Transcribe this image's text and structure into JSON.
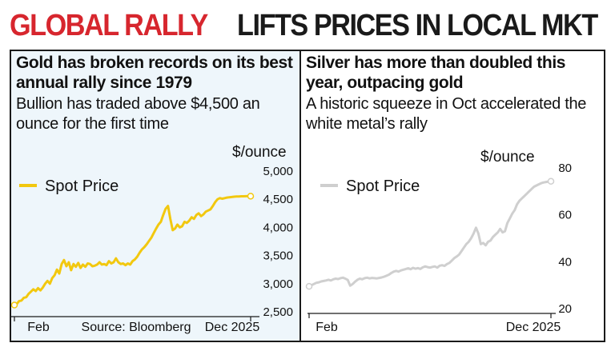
{
  "headline": {
    "part1": "GLOBAL RALLY",
    "part2": "LIFTS PRICES IN LOCAL MKT"
  },
  "colors": {
    "headline_red": "#d7262e",
    "gold": "#f2c80f",
    "silver": "#cfcfcf",
    "text": "#111111"
  },
  "gold_panel": {
    "title": "Gold has broken records on its best annual rally since 1979",
    "subtitle": "Bullion has traded above $4,500 an ounce for the first time",
    "unit": "$/ounce",
    "source": "Source: Bloomberg"
  },
  "silver_panel": {
    "title": "Silver has more than doubled this year, outpacing gold",
    "subtitle": "A historic squeeze in Oct accelerated the white metal’s rally",
    "unit": "$/ounce"
  },
  "chart_data": [
    {
      "type": "line",
      "series": [
        {
          "name": "Spot Price",
          "color": "#f2c80f",
          "x": [
            0,
            3,
            6,
            9,
            12,
            15,
            18,
            21,
            24,
            27,
            30,
            33,
            36,
            39,
            42,
            45,
            48,
            51,
            54,
            57,
            60,
            63,
            66,
            69,
            72,
            75,
            78,
            81,
            84,
            87,
            90,
            93,
            96,
            99,
            102,
            105,
            108,
            111,
            114,
            117,
            120,
            123,
            126,
            129,
            132,
            135,
            138,
            141,
            144,
            147,
            150,
            153,
            156,
            159,
            162,
            165,
            168,
            171,
            174,
            177,
            180,
            183,
            186,
            189,
            192,
            195,
            198,
            201,
            204,
            207,
            210,
            213,
            216,
            219,
            222,
            225,
            228,
            231,
            234,
            237,
            240,
            243,
            246,
            249,
            252,
            255,
            258,
            261,
            264,
            267,
            270,
            273,
            276,
            279,
            282,
            285,
            288,
            291,
            294,
            297,
            300
          ],
          "y": [
            2620,
            2640,
            2690,
            2700,
            2750,
            2760,
            2820,
            2860,
            2900,
            2870,
            2920,
            2880,
            2930,
            3000,
            3050,
            3000,
            3100,
            3150,
            3250,
            3180,
            3350,
            3420,
            3310,
            3380,
            3240,
            3350,
            3300,
            3370,
            3280,
            3340,
            3300,
            3360,
            3350,
            3310,
            3320,
            3340,
            3380,
            3340,
            3350,
            3330,
            3400,
            3360,
            3380,
            3450,
            3380,
            3350,
            3360,
            3330,
            3360,
            3340,
            3400,
            3430,
            3480,
            3550,
            3610,
            3650,
            3700,
            3760,
            3820,
            3900,
            3980,
            4050,
            4100,
            4220,
            4330,
            4380,
            4150,
            3950,
            3980,
            4050,
            4000,
            4020,
            4100,
            4080,
            4120,
            4180,
            4150,
            4220,
            4250,
            4200,
            4230,
            4280,
            4300,
            4320,
            4380,
            4450,
            4500,
            4520,
            4510,
            4520,
            4530,
            4535,
            4540,
            4545,
            4548,
            4550,
            4552,
            4553,
            4554,
            4555,
            4555
          ]
        }
      ],
      "x_tick_labels": [
        "Feb",
        "Dec 2025"
      ],
      "y_ticks": [
        2500,
        3000,
        3500,
        4000,
        4500,
        5000
      ],
      "y_tick_labels": [
        "2,500",
        "3,000",
        "3,500",
        "4,000",
        "4,500",
        "5,000"
      ],
      "ylim": [
        2500,
        5000
      ],
      "ylabel": "$/ounce",
      "legend": "top-left",
      "grid": false
    },
    {
      "type": "line",
      "series": [
        {
          "name": "Spot Price",
          "color": "#cfcfcf",
          "x": [
            0,
            3,
            6,
            9,
            12,
            15,
            18,
            21,
            24,
            27,
            30,
            33,
            36,
            39,
            42,
            45,
            48,
            51,
            54,
            57,
            60,
            63,
            66,
            69,
            72,
            75,
            78,
            81,
            84,
            87,
            90,
            93,
            96,
            99,
            102,
            105,
            108,
            111,
            114,
            117,
            120,
            123,
            126,
            129,
            132,
            135,
            138,
            141,
            144,
            147,
            150,
            153,
            156,
            159,
            162,
            165,
            168,
            171,
            174,
            177,
            180,
            183,
            186,
            189,
            192,
            195,
            198,
            201,
            204,
            207,
            210,
            213,
            216,
            219,
            222,
            225,
            228,
            231,
            234,
            237,
            240,
            243,
            246,
            249,
            252,
            255,
            258,
            261,
            264,
            267,
            270,
            273,
            276,
            279,
            282,
            285,
            288,
            291,
            294,
            297,
            300
          ],
          "y": [
            29.5,
            30.0,
            30.5,
            31.0,
            31.2,
            31.6,
            31.8,
            32.0,
            32.3,
            32.0,
            32.5,
            32.8,
            32.6,
            33.0,
            33.2,
            32.8,
            32.2,
            29.8,
            30.5,
            31.5,
            32.3,
            32.8,
            32.5,
            33.0,
            33.2,
            32.9,
            33.1,
            33.0,
            32.9,
            33.1,
            33.3,
            33.6,
            34.0,
            34.5,
            35.2,
            35.8,
            36.1,
            35.8,
            36.3,
            36.6,
            36.9,
            37.2,
            36.8,
            37.4,
            37.0,
            37.3,
            36.9,
            37.6,
            38.0,
            37.7,
            37.5,
            37.8,
            38.0,
            37.5,
            38.3,
            38.5,
            38.2,
            39.0,
            39.5,
            40.5,
            41.5,
            42.2,
            43.0,
            44.5,
            46.0,
            47.5,
            48.5,
            50.0,
            52.0,
            54.5,
            52.0,
            47.5,
            48.0,
            47.0,
            48.5,
            49.0,
            50.5,
            51.5,
            52.5,
            54.0,
            52.5,
            53.0,
            56.5,
            58.5,
            60.5,
            62.0,
            64.5,
            66.0,
            67.0,
            68.0,
            69.0,
            70.0,
            71.0,
            72.0,
            72.5,
            73.0,
            73.5,
            73.8,
            74.0,
            74.2,
            74.3
          ]
        }
      ],
      "x_tick_labels": [
        "Feb",
        "Dec 2025"
      ],
      "y_ticks": [
        20,
        40,
        60,
        80
      ],
      "y_tick_labels": [
        "20",
        "40",
        "60",
        "80"
      ],
      "ylim": [
        20,
        80
      ],
      "ylabel": "$/ounce",
      "legend": "top-left",
      "grid": false
    }
  ]
}
